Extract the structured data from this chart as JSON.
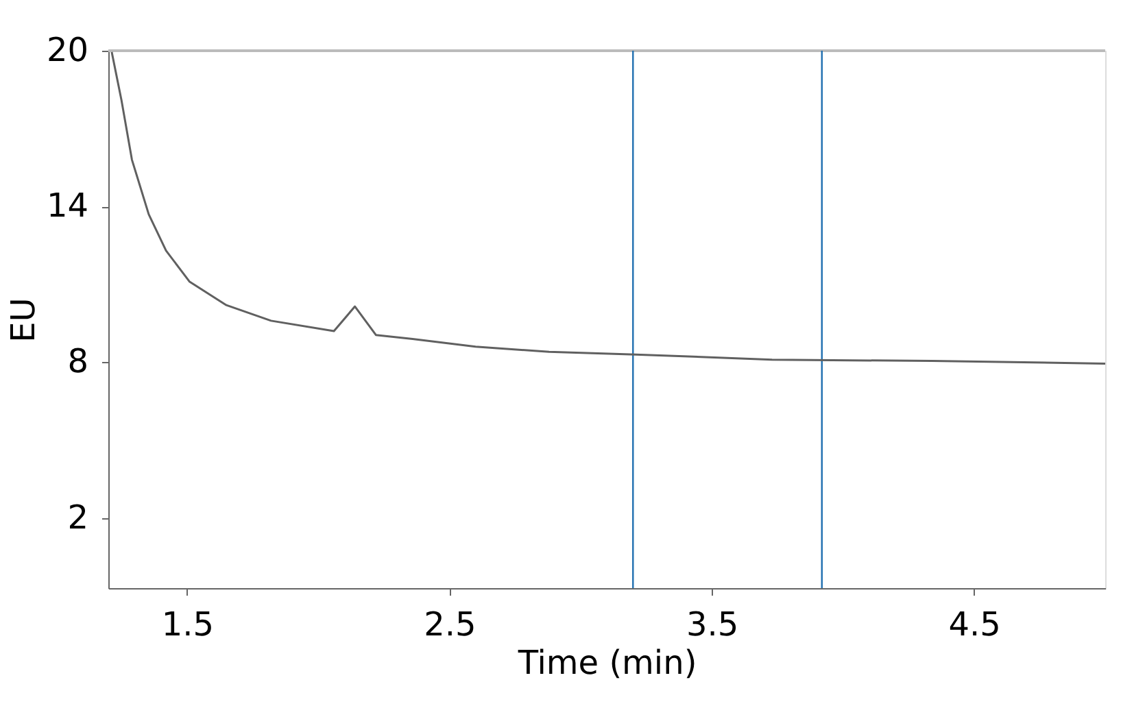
{
  "chart_data": {
    "type": "line",
    "xlabel": "Time (min)",
    "ylabel": "EU",
    "x": [
      1.213,
      1.25,
      1.29,
      1.354,
      1.42,
      1.51,
      1.65,
      1.82,
      2.06,
      2.14,
      2.22,
      2.36,
      2.6,
      2.88,
      3.21,
      3.73,
      4.34,
      5.0
    ],
    "series": [
      {
        "color": "#606060",
        "values": [
          19.95,
          18.1,
          15.8,
          13.7,
          12.3,
          11.1,
          10.2,
          9.6,
          9.2,
          10.15,
          9.05,
          8.9,
          8.6,
          8.4,
          8.3,
          8.1,
          8.05,
          7.95
        ]
      }
    ],
    "xlim": [
      1.2,
      5.0
    ],
    "ylim": [
      -0.7,
      20
    ],
    "xticks": [
      1.5,
      2.5,
      3.5,
      4.5
    ],
    "yticks": [
      2,
      8,
      14,
      20
    ],
    "ref_lines": [
      {
        "axis": "x",
        "value": 3.2,
        "color": "#1f6fb0"
      },
      {
        "axis": "x",
        "value": 3.92,
        "color": "#1f6fb0"
      },
      {
        "axis": "y",
        "value": 20,
        "color": "#bbbbbb"
      }
    ],
    "grid": false,
    "marker": "none",
    "line_style": "solid"
  }
}
